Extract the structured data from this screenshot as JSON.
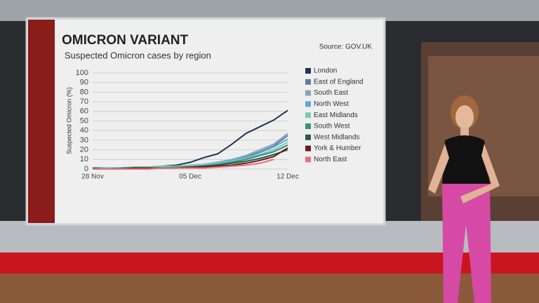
{
  "chart_data": {
    "type": "line",
    "title": "OMICRON VARIANT",
    "subtitle": "Suspected Omicron cases by region",
    "source": "Source: GOV.UK",
    "y_label": "Suspected Omicron (%)",
    "categories": [
      "28 Nov",
      null,
      null,
      null,
      null,
      null,
      null,
      "05 Dec",
      null,
      null,
      null,
      null,
      null,
      null,
      "12 Dec"
    ],
    "ylim": [
      0,
      100
    ],
    "yticks": [
      0,
      10,
      20,
      30,
      40,
      50,
      60,
      70,
      80,
      90,
      100
    ],
    "grid": true,
    "legend": "right",
    "series": [
      {
        "name": "London",
        "color": "#1f3556",
        "values": [
          1,
          1,
          1,
          2,
          2,
          3,
          4,
          7,
          12,
          16,
          26,
          37,
          44,
          51,
          61
        ]
      },
      {
        "name": "East of England",
        "color": "#5b7fa3",
        "values": [
          0,
          0,
          1,
          1,
          1,
          1,
          2,
          3,
          4,
          6,
          9,
          13,
          18,
          24,
          35
        ]
      },
      {
        "name": "South East",
        "color": "#8fa3b8",
        "values": [
          0,
          0,
          1,
          1,
          1,
          2,
          2,
          3,
          5,
          7,
          10,
          14,
          20,
          26,
          37
        ]
      },
      {
        "name": "North West",
        "color": "#5ba9de",
        "values": [
          0,
          0,
          1,
          1,
          1,
          2,
          3,
          4,
          5,
          7,
          9,
          12,
          17,
          23,
          31
        ]
      },
      {
        "name": "East Midlands",
        "color": "#6fcfb0",
        "values": [
          0,
          1,
          1,
          2,
          2,
          3,
          3,
          4,
          5,
          6,
          8,
          11,
          15,
          20,
          28
        ]
      },
      {
        "name": "South West",
        "color": "#3a8f80",
        "values": [
          0,
          0,
          1,
          1,
          1,
          1,
          2,
          2,
          3,
          5,
          7,
          10,
          14,
          18,
          25
        ]
      },
      {
        "name": "West Midlands",
        "color": "#2d5a47",
        "values": [
          0,
          0,
          0,
          1,
          1,
          1,
          1,
          2,
          3,
          4,
          6,
          8,
          11,
          15,
          20
        ]
      },
      {
        "name": "York & Humber",
        "color": "#6b1a1a",
        "values": [
          0,
          0,
          0,
          1,
          1,
          1,
          1,
          2,
          2,
          3,
          4,
          6,
          9,
          13,
          22
        ]
      },
      {
        "name": "North East",
        "color": "#e8707a",
        "values": [
          0,
          0,
          0,
          0,
          0,
          1,
          1,
          1,
          1,
          2,
          3,
          4,
          6,
          10,
          null
        ]
      }
    ]
  }
}
